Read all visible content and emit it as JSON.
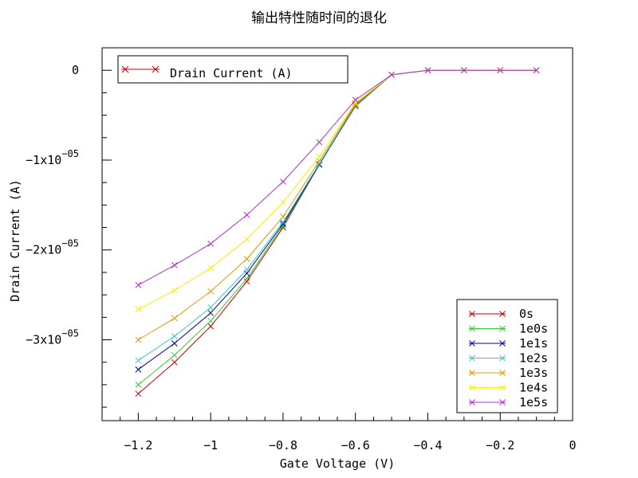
{
  "chart_data": {
    "type": "line",
    "title": "输出特性随时间的退化",
    "xlabel": "Gate Voltage (V)",
    "ylabel": "Drain Current (A)",
    "xlim": [
      -1.3,
      0
    ],
    "ylim": [
      -3.9e-05,
      2.5e-06
    ],
    "x_ticks": [
      {
        "value": -1.2,
        "label": "−1.2"
      },
      {
        "value": -1.0,
        "label": "−1"
      },
      {
        "value": -0.8,
        "label": "−0.8"
      },
      {
        "value": -0.6,
        "label": "−0.6"
      },
      {
        "value": -0.4,
        "label": "−0.4"
      },
      {
        "value": -0.2,
        "label": "−0.2"
      },
      {
        "value": 0.0,
        "label": "0"
      }
    ],
    "y_ticks": [
      {
        "value": 0,
        "base": "0",
        "exp": ""
      },
      {
        "value": -1e-05,
        "base": "−1x10",
        "exp": "−05"
      },
      {
        "value": -2e-05,
        "base": "−2x10",
        "exp": "−05"
      },
      {
        "value": -3e-05,
        "base": "−3x10",
        "exp": "−05"
      }
    ],
    "top_legend": {
      "label": "Drain Current (A)",
      "color": "#cc0000"
    },
    "x": [
      -1.2,
      -1.1,
      -1.0,
      -0.9,
      -0.8,
      -0.7,
      -0.6,
      -0.5,
      -0.4,
      -0.3,
      -0.2,
      -0.1
    ],
    "series": [
      {
        "name": "0s",
        "color": "#cc0000",
        "values": [
          -3.6e-05,
          -3.25e-05,
          -2.85e-05,
          -2.35e-05,
          -1.75e-05,
          -1.05e-05,
          -4e-06,
          -5e-07,
          0,
          0,
          0,
          0
        ]
      },
      {
        "name": "1e0s",
        "color": "#33cc33",
        "values": [
          -3.5e-05,
          -3.17e-05,
          -2.79e-05,
          -2.32e-05,
          -1.73e-05,
          -1.05e-05,
          -3.9e-06,
          -5e-07,
          0,
          0,
          0,
          0
        ]
      },
      {
        "name": "1e1s",
        "color": "#000099",
        "values": [
          -3.33e-05,
          -3.04e-05,
          -2.7e-05,
          -2.26e-05,
          -1.71e-05,
          -1.05e-05,
          -3.8e-06,
          -5e-07,
          0,
          0,
          0,
          0
        ]
      },
      {
        "name": "1e2s",
        "color": "#33cccc",
        "values": [
          -3.23e-05,
          -2.96e-05,
          -2.64e-05,
          -2.22e-05,
          -1.69e-05,
          -1.04e-05,
          -3.8e-06,
          -5e-07,
          0,
          0,
          0,
          0
        ]
      },
      {
        "name": "1e3s",
        "color": "#e69900",
        "values": [
          -3e-05,
          -2.76e-05,
          -2.46e-05,
          -2.1e-05,
          -1.63e-05,
          -1.01e-05,
          -3.7e-06,
          -5e-07,
          0,
          0,
          0,
          0
        ]
      },
      {
        "name": "1e4s",
        "color": "#ffee00",
        "values": [
          -2.66e-05,
          -2.45e-05,
          -2.2e-05,
          -1.88e-05,
          -1.47e-05,
          -9.6e-06,
          -3.6e-06,
          -5e-07,
          0,
          0,
          0,
          0
        ]
      },
      {
        "name": "1e5s",
        "color": "#aa33cc",
        "values": [
          -2.39e-05,
          -2.17e-05,
          -1.93e-05,
          -1.61e-05,
          -1.24e-05,
          -8e-06,
          -3.3e-06,
          -5e-07,
          0,
          0,
          0,
          0
        ]
      }
    ],
    "grid": false,
    "legend_position": "bottom-right"
  }
}
